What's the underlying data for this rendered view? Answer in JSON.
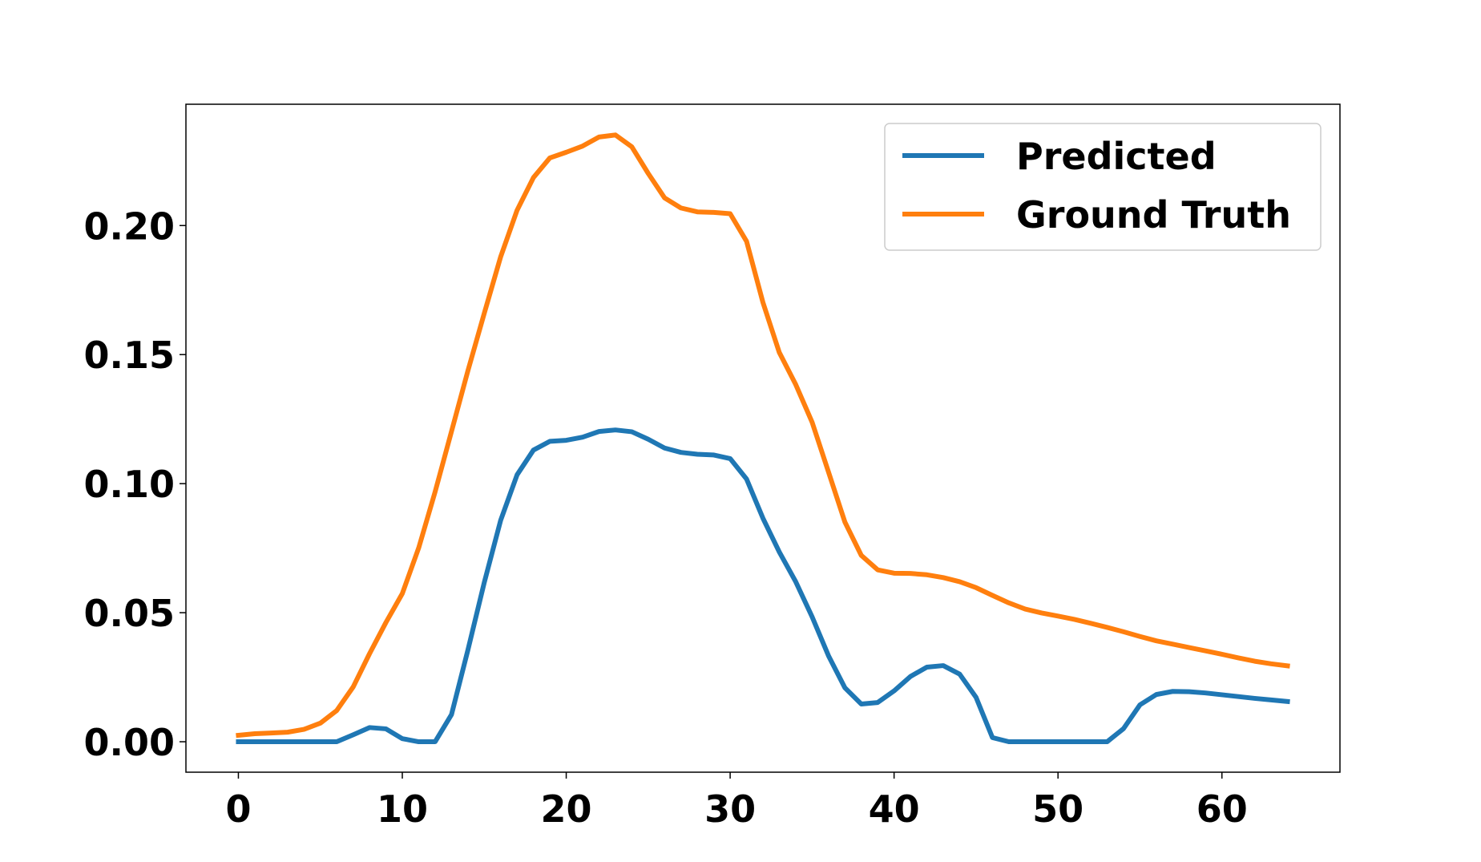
{
  "chart_data": {
    "type": "line",
    "title": "",
    "xlabel": "",
    "ylabel": "",
    "xlim": [
      -3.2,
      67.2
    ],
    "ylim": [
      -0.0118,
      0.247
    ],
    "xticks": [
      0,
      10,
      20,
      30,
      40,
      50,
      60
    ],
    "xtick_labels": [
      "0",
      "10",
      "20",
      "30",
      "40",
      "50",
      "60"
    ],
    "yticks": [
      0.0,
      0.05,
      0.1,
      0.15,
      0.2
    ],
    "ytick_labels": [
      "0.00",
      "0.05",
      "0.10",
      "0.15",
      "0.20"
    ],
    "grid": false,
    "legend_position": "upper right",
    "x": [
      0,
      1,
      2,
      3,
      4,
      5,
      6,
      7,
      8,
      9,
      10,
      11,
      12,
      13,
      14,
      15,
      16,
      17,
      18,
      19,
      20,
      21,
      22,
      23,
      24,
      25,
      26,
      27,
      28,
      29,
      30,
      31,
      32,
      33,
      34,
      35,
      36,
      37,
      38,
      39,
      40,
      41,
      42,
      43,
      44,
      45,
      46,
      47,
      48,
      49,
      50,
      51,
      52,
      53,
      54,
      55,
      56,
      57,
      58,
      59,
      60,
      61,
      62,
      63,
      64
    ],
    "series": [
      {
        "name": "Predicted",
        "color": "#1f77b4",
        "values": [
          0.0,
          0.0,
          0.0,
          0.0,
          0.0,
          0.0,
          0.0,
          0.0027,
          0.0055,
          0.005,
          0.0012,
          0.0,
          0.0,
          0.0105,
          0.0355,
          0.0617,
          0.0858,
          0.1034,
          0.113,
          0.1164,
          0.1168,
          0.118,
          0.1202,
          0.1208,
          0.1201,
          0.1172,
          0.1138,
          0.1121,
          0.1114,
          0.1111,
          0.1097,
          0.1018,
          0.0866,
          0.0735,
          0.062,
          0.0484,
          0.0333,
          0.0209,
          0.0146,
          0.0152,
          0.0197,
          0.0253,
          0.0289,
          0.0295,
          0.0262,
          0.0172,
          0.0016,
          0.0,
          0.0,
          0.0,
          0.0,
          0.0,
          0.0,
          0.0,
          0.0051,
          0.0143,
          0.0183,
          0.0195,
          0.0194,
          0.0189,
          0.0182,
          0.0175,
          0.0168,
          0.0162,
          0.0156
        ]
      },
      {
        "name": "Ground Truth",
        "color": "#ff7f0e",
        "values": [
          0.0025,
          0.0031,
          0.0034,
          0.0037,
          0.0048,
          0.0072,
          0.0121,
          0.0212,
          0.0341,
          0.0462,
          0.0574,
          0.0751,
          0.0968,
          0.1202,
          0.1437,
          0.166,
          0.1879,
          0.2059,
          0.2186,
          0.2262,
          0.2284,
          0.2308,
          0.2343,
          0.2351,
          0.2305,
          0.2202,
          0.2107,
          0.2068,
          0.2053,
          0.2051,
          0.2046,
          0.1939,
          0.1702,
          0.1508,
          0.1384,
          0.1238,
          0.1045,
          0.0851,
          0.0722,
          0.0666,
          0.0653,
          0.0652,
          0.0647,
          0.0636,
          0.062,
          0.0597,
          0.0567,
          0.0538,
          0.0514,
          0.0499,
          0.0487,
          0.0474,
          0.0459,
          0.0443,
          0.0426,
          0.0408,
          0.0391,
          0.0378,
          0.0365,
          0.0352,
          0.0339,
          0.0325,
          0.0312,
          0.0302,
          0.0294
        ]
      }
    ]
  }
}
